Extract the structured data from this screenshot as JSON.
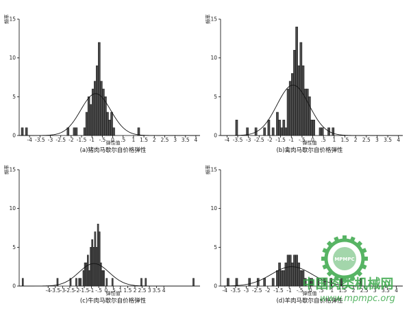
{
  "chart_data": [
    {
      "type": "bar",
      "title": "(a)猪肉马歇尔自价格弹性",
      "xlabel": "弹性值",
      "ylabel": "频率",
      "xlim": [
        -4.5,
        4.2
      ],
      "ylim": [
        0,
        15
      ],
      "xticks": [
        -4,
        -3.5,
        -3,
        -2.5,
        -2,
        -1.5,
        -1,
        -0.5,
        0,
        0.5,
        1,
        1.5,
        2,
        2.5,
        3,
        3.5,
        4
      ],
      "xtick_labels": [
        "-4",
        "-3.5",
        "-3",
        "-2.5",
        "-2",
        "-1.5",
        "-1",
        "-.5",
        "0",
        ".5",
        "1",
        "1.5",
        "2",
        "2.5",
        "3",
        "3.5",
        "4"
      ],
      "yticks": [
        0,
        5,
        10,
        15
      ],
      "bin_width": 0.1,
      "bins": [
        [
          -4.4,
          1
        ],
        [
          -4.2,
          1
        ],
        [
          -2.2,
          1
        ],
        [
          -1.9,
          1
        ],
        [
          -1.8,
          1
        ],
        [
          -1.4,
          1
        ],
        [
          -1.3,
          3
        ],
        [
          -1.2,
          5
        ],
        [
          -1.1,
          4
        ],
        [
          -1.0,
          6
        ],
        [
          -0.9,
          7
        ],
        [
          -0.8,
          9
        ],
        [
          -0.7,
          12
        ],
        [
          -0.6,
          7
        ],
        [
          -0.5,
          6
        ],
        [
          -0.4,
          5
        ],
        [
          -0.3,
          3
        ],
        [
          -0.2,
          2
        ],
        [
          -0.1,
          3
        ],
        [
          0.0,
          1
        ],
        [
          1.2,
          1
        ]
      ],
      "normal_fit": {
        "mean": -0.82,
        "sd": 0.72,
        "peak": 5.4
      }
    },
    {
      "type": "bar",
      "title": "(b)禽肉马歇尔自价格弹性",
      "xlabel": "弹性值",
      "ylabel": "频率",
      "xlim": [
        -4.3,
        4.2
      ],
      "ylim": [
        0,
        15
      ],
      "xticks": [
        -4,
        -3.5,
        -3,
        -2.5,
        -2,
        -1.5,
        -1,
        -0.5,
        0,
        0.5,
        1,
        1.5,
        2,
        2.5,
        3,
        3.5,
        4
      ],
      "xtick_labels": [
        "-4",
        "-3.5",
        "-3",
        "-2.5",
        "-2",
        "-1.5",
        "-1",
        "-.5",
        "0",
        ".5",
        "1",
        "1.5",
        "2",
        "2.5",
        "3",
        "3.5",
        "4"
      ],
      "yticks": [
        0,
        5,
        10,
        15
      ],
      "bin_width": 0.1,
      "bins": [
        [
          -3.6,
          2
        ],
        [
          -3.1,
          1
        ],
        [
          -2.7,
          1
        ],
        [
          -2.3,
          1
        ],
        [
          -2.1,
          2
        ],
        [
          -1.9,
          1
        ],
        [
          -1.7,
          3
        ],
        [
          -1.6,
          2
        ],
        [
          -1.5,
          1
        ],
        [
          -1.4,
          2
        ],
        [
          -1.3,
          1
        ],
        [
          -1.2,
          6
        ],
        [
          -1.1,
          7
        ],
        [
          -1.0,
          8
        ],
        [
          -0.9,
          11
        ],
        [
          -0.8,
          14
        ],
        [
          -0.7,
          9
        ],
        [
          -0.6,
          12
        ],
        [
          -0.5,
          9
        ],
        [
          -0.4,
          6
        ],
        [
          -0.3,
          6
        ],
        [
          -0.2,
          5
        ],
        [
          -0.1,
          2
        ],
        [
          0.0,
          2
        ],
        [
          0.3,
          1
        ],
        [
          0.4,
          1
        ],
        [
          0.7,
          1
        ],
        [
          0.9,
          1
        ]
      ],
      "normal_fit": {
        "mean": -0.92,
        "sd": 0.75,
        "peak": 6.5
      }
    },
    {
      "type": "bar",
      "title": "(c)牛肉马歇尔自价格弹性",
      "xlabel": "弹性值",
      "ylabel": "频率",
      "xlim": [
        -6,
        6.5
      ],
      "ylim": [
        0,
        15
      ],
      "xticks": [
        -4,
        -3.5,
        -3,
        -2.5,
        -2,
        -1.5,
        -1,
        -0.5,
        0,
        0.5,
        1,
        1.5,
        2,
        2.5,
        3,
        3.5,
        4
      ],
      "xtick_labels": [
        "-4",
        "-3.5",
        "-3",
        "-2.5",
        "-2",
        "-1.5",
        "-1",
        "-.5",
        "0",
        ".5",
        "1",
        "1.5",
        "2",
        "2.5",
        "3",
        "3.5",
        "4"
      ],
      "yticks": [
        0,
        5,
        10,
        15
      ],
      "bin_width": 0.1,
      "bins": [
        [
          -5.8,
          1
        ],
        [
          -3.4,
          1
        ],
        [
          -2.5,
          1
        ],
        [
          -2.1,
          1
        ],
        [
          -1.9,
          1
        ],
        [
          -1.8,
          1
        ],
        [
          -1.6,
          2
        ],
        [
          -1.5,
          3
        ],
        [
          -1.4,
          3
        ],
        [
          -1.3,
          4
        ],
        [
          -1.2,
          2
        ],
        [
          -1.1,
          5
        ],
        [
          -1.0,
          6
        ],
        [
          -0.9,
          5
        ],
        [
          -0.8,
          7
        ],
        [
          -0.7,
          5
        ],
        [
          -0.6,
          8
        ],
        [
          -0.5,
          7
        ],
        [
          -0.4,
          3
        ],
        [
          -0.3,
          2
        ],
        [
          -0.2,
          2
        ],
        [
          0.0,
          1
        ],
        [
          0.4,
          1
        ],
        [
          2.4,
          1
        ],
        [
          2.7,
          1
        ],
        [
          6.0,
          1
        ]
      ],
      "normal_fit": {
        "mean": -0.83,
        "sd": 1.05,
        "peak": 2.9
      }
    },
    {
      "type": "bar",
      "title": "(d)羊肉马歇尔自价格弹性",
      "xlabel": "弹性值",
      "ylabel": "频率",
      "xlim": [
        -4.2,
        4.3
      ],
      "ylim": [
        0,
        15
      ],
      "xticks": [
        -4,
        -3.5,
        -3,
        -2.5,
        -2,
        -1.5,
        -1,
        -0.5,
        0,
        0.5,
        1,
        1.5,
        2,
        2.5,
        3,
        3.5,
        4
      ],
      "xtick_labels": [
        "-4",
        "-3.5",
        "-3",
        "-2.5",
        "-2",
        "-1.5",
        "-1",
        "-.5",
        "0",
        ".5",
        "1",
        "1.5",
        "2",
        "2.5",
        "3",
        "3.5",
        "4"
      ],
      "yticks": [
        0,
        5,
        10,
        15
      ],
      "bin_width": 0.1,
      "bins": [
        [
          -3.9,
          1
        ],
        [
          -3.5,
          1
        ],
        [
          -2.9,
          1
        ],
        [
          -2.5,
          1
        ],
        [
          -2.2,
          1
        ],
        [
          -1.8,
          1
        ],
        [
          -1.6,
          2
        ],
        [
          -1.5,
          3
        ],
        [
          -1.4,
          2
        ],
        [
          -1.3,
          2
        ],
        [
          -1.2,
          3
        ],
        [
          -1.1,
          4
        ],
        [
          -1.0,
          4
        ],
        [
          -0.9,
          3
        ],
        [
          -0.8,
          4
        ],
        [
          -0.7,
          4
        ],
        [
          -0.6,
          3
        ],
        [
          -0.5,
          2
        ],
        [
          -0.4,
          2
        ],
        [
          -0.3,
          1
        ],
        [
          -0.1,
          1
        ],
        [
          0.0,
          1
        ],
        [
          0.3,
          1
        ],
        [
          0.6,
          1
        ],
        [
          0.9,
          1
        ],
        [
          1.4,
          1
        ],
        [
          2.3,
          1
        ]
      ],
      "normal_fit": {
        "mean": -0.88,
        "sd": 0.95,
        "peak": 2.5
      }
    }
  ],
  "watermark": {
    "text_cn": "中国肉类机械网",
    "text_url": "www.mpmpc.org",
    "logo_text": "MPMPC",
    "color": "#3aa84a"
  }
}
